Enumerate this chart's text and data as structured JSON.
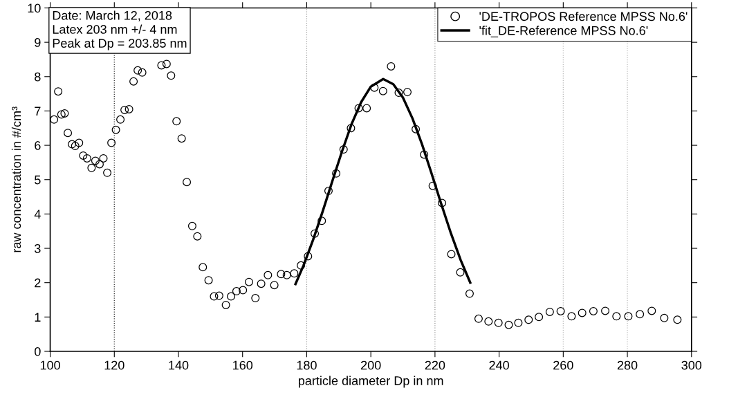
{
  "chart_data": {
    "type": "scatter",
    "xlabel": "particle diameter Dp in nm",
    "ylabel": "raw concentration in #/cm³",
    "xlim": [
      100,
      300
    ],
    "xticks": [
      100,
      120,
      140,
      160,
      180,
      200,
      220,
      240,
      260,
      280,
      300
    ],
    "ylim": [
      0,
      10
    ],
    "yticks": [
      0,
      1,
      2,
      3,
      4,
      5,
      6,
      7,
      8,
      9,
      10
    ],
    "grid": false,
    "legend": "top right",
    "marker": "circle",
    "annotations": [
      "Date: March 12, 2018",
      "Latex 203 nm +/- 4 nm",
      "Peak at Dp = 203.85 nm"
    ],
    "ref_lines": [
      {
        "axis": "x",
        "value": 120,
        "label": null,
        "color": "#333333",
        "line_style": "dotted"
      },
      {
        "axis": "x",
        "value": 180,
        "label": null,
        "color": "#999999",
        "line_style": "dotted"
      },
      {
        "axis": "x",
        "value": 220,
        "label": null,
        "color": "#999999",
        "line_style": "dotted"
      },
      {
        "axis": "x",
        "value": 260,
        "label": null,
        "color": "#bbbbbb",
        "line_style": "dotted"
      },
      {
        "axis": "x",
        "value": 280,
        "label": null,
        "color": "#bbbbbb",
        "line_style": "dotted"
      }
    ],
    "series": [
      {
        "name": "'DE-TROPOS Reference MPSS No.6'",
        "color": "#000000",
        "x": [
          101.2,
          102.5,
          103.5,
          104.5,
          105.5,
          106.8,
          107.8,
          109,
          110.3,
          111.5,
          112.9,
          114.1,
          115.4,
          116.6,
          117.8,
          119.1,
          120.5,
          121.9,
          123.2,
          124.6,
          126,
          127.3,
          128.7,
          134.7,
          136.3,
          137.7,
          139.4,
          141,
          142.6,
          144.3,
          145.9,
          147.6,
          149.4,
          151.1,
          152.7,
          154.8,
          156.4,
          158.1,
          160.1,
          162,
          164,
          165.8,
          167.9,
          169.9,
          172,
          173.8,
          176.1,
          178.2,
          180.4,
          182.5,
          184.7,
          186.8,
          189.2,
          191.5,
          193.8,
          196.2,
          198.7,
          201.1,
          203.8,
          206.3,
          208.7,
          211.4,
          214,
          216.6,
          219.3,
          222.2,
          225.1,
          227.9,
          230.8,
          233.6,
          236.7,
          239.8,
          243,
          246,
          249.2,
          252.4,
          255.8,
          259.2,
          262.6,
          265.9,
          269.4,
          273.1,
          276.6,
          280.3,
          283.9,
          287.6,
          291.5,
          295.6
        ],
        "values": [
          6.75,
          7.57,
          6.9,
          6.93,
          6.36,
          6.03,
          5.98,
          6.07,
          5.7,
          5.62,
          5.34,
          5.55,
          5.45,
          5.62,
          5.2,
          6.07,
          6.45,
          6.75,
          7.03,
          7.05,
          7.86,
          8.18,
          8.12,
          8.33,
          8.37,
          8.03,
          6.7,
          6.2,
          4.93,
          3.65,
          3.35,
          2.45,
          2.07,
          1.6,
          1.62,
          1.35,
          1.6,
          1.75,
          1.78,
          2.02,
          1.55,
          1.97,
          2.22,
          1.93,
          2.25,
          2.22,
          2.27,
          2.5,
          2.77,
          3.43,
          3.8,
          4.67,
          5.18,
          5.88,
          6.5,
          7.08,
          7.08,
          7.68,
          7.58,
          8.3,
          7.53,
          7.55,
          6.47,
          5.73,
          4.82,
          4.32,
          2.83,
          2.3,
          1.68,
          0.95,
          0.87,
          0.83,
          0.77,
          0.83,
          0.92,
          1.0,
          1.15,
          1.17,
          1.02,
          1.12,
          1.17,
          1.18,
          1.02,
          1.02,
          1.08,
          1.18,
          0.97,
          0.92
        ]
      },
      {
        "name": "'fit_DE-Reference MPSS No.6'",
        "type": "line",
        "color": "#000000",
        "marker": "none",
        "line_style": "solid",
        "x": [
          176.5,
          179,
          182,
          185,
          188,
          191,
          194,
          197,
          200,
          203.85,
          207,
          210,
          213,
          216,
          219,
          222,
          225,
          228,
          231
        ],
        "values": [
          1.96,
          2.5,
          3.25,
          4.08,
          4.96,
          5.82,
          6.62,
          7.26,
          7.71,
          7.93,
          7.78,
          7.39,
          6.78,
          6.02,
          5.16,
          4.28,
          3.43,
          2.66,
          2.0
        ]
      }
    ]
  }
}
